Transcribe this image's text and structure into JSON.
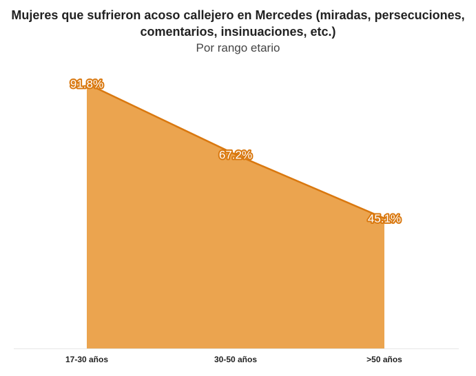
{
  "chart_data": {
    "type": "area",
    "title_line1": "Mujeres que sufrieron acoso callejero en Mercedes (miradas, persecuciones,",
    "title_line2": "comentarios, insinuaciones, etc.)",
    "subtitle": "Por rango etario",
    "categories": [
      "17-30 años",
      "30-50 años",
      ">50 años"
    ],
    "values": [
      91.8,
      67.2,
      45.1
    ],
    "value_labels": [
      "91.8%",
      "67.2%",
      "45.1%"
    ],
    "ylim": [
      0,
      100
    ],
    "grid": false,
    "colors": {
      "fill": "#eba44f",
      "line": "#d9780f",
      "baseline": "#e6e6e6"
    }
  }
}
